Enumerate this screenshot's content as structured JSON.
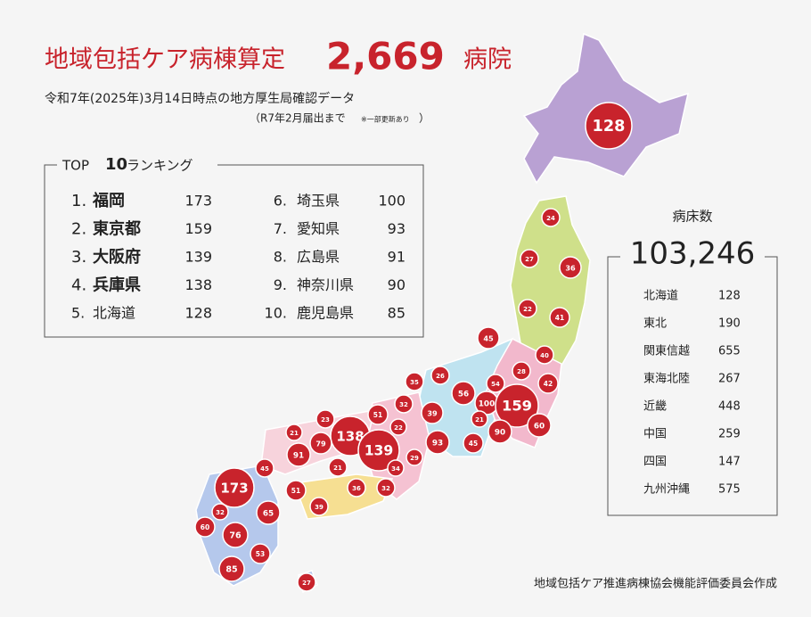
{
  "header": {
    "title": "地域包括ケア病棟算定",
    "count": "2,669",
    "unit": "病院",
    "subtitle": "令和7年(2025年)3月14日時点の地方厚生局確認データ",
    "note": "（R7年2月届出まで",
    "note_small": "※一部更新あり",
    "note_close": "）"
  },
  "ranking": {
    "title_prefix": "TOP",
    "title_number": "10",
    "title_suffix": "ランキング",
    "items": [
      {
        "rank": "1.",
        "name": "福岡",
        "value": 173
      },
      {
        "rank": "2.",
        "name": "東京都",
        "value": 159
      },
      {
        "rank": "3.",
        "name": "大阪府",
        "value": 139
      },
      {
        "rank": "4.",
        "name": "兵庫県",
        "value": 138
      },
      {
        "rank": "5.",
        "name": "北海道",
        "value": 128
      },
      {
        "rank": "6.",
        "name": "埼玉県",
        "value": 100
      },
      {
        "rank": "7.",
        "name": "愛知県",
        "value": 93
      },
      {
        "rank": "8.",
        "name": "広島県",
        "value": 91
      },
      {
        "rank": "9.",
        "name": "神奈川県",
        "value": 90
      },
      {
        "rank": "10.",
        "name": "鹿児島県",
        "value": 85
      }
    ]
  },
  "beds": {
    "label": "病床数",
    "total": "103,246",
    "regions": [
      {
        "name": "北海道",
        "value": 128
      },
      {
        "name": "東北",
        "value": 190
      },
      {
        "name": "関東信越",
        "value": 655
      },
      {
        "name": "東海北陸",
        "value": 267
      },
      {
        "name": "近畿",
        "value": 448
      },
      {
        "name": "中国",
        "value": 259
      },
      {
        "name": "四国",
        "value": 147
      },
      {
        "name": "九州沖縄",
        "value": 575
      }
    ]
  },
  "map_values": [
    128,
    24,
    27,
    36,
    22,
    41,
    45,
    40,
    28,
    42,
    35,
    26,
    56,
    54,
    100,
    159,
    21,
    90,
    60,
    32,
    39,
    51,
    23,
    22,
    138,
    21,
    79,
    139,
    93,
    45,
    91,
    29,
    34,
    21,
    45,
    51,
    36,
    32,
    39,
    173,
    32,
    65,
    60,
    76,
    53,
    85,
    27
  ],
  "credit": "地域包括ケア推進病棟協会機能評価委員会作成"
}
